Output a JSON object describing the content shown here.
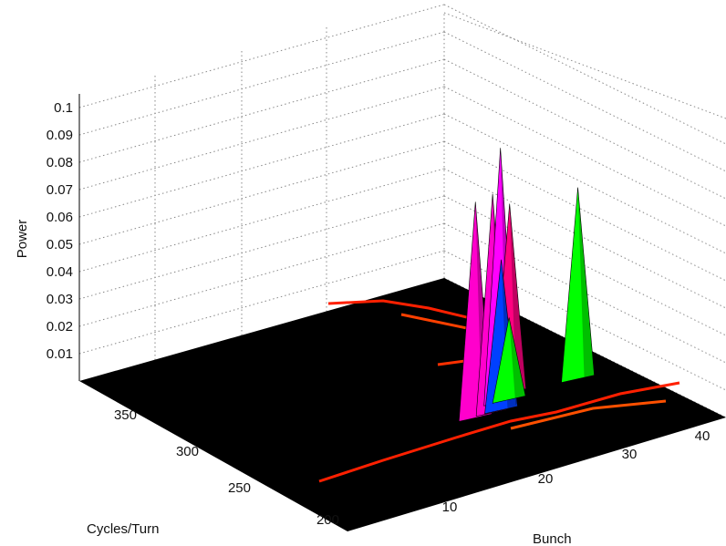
{
  "chart_data": {
    "type": "surface",
    "title": "",
    "xlabel": "Bunch",
    "ylabel": "Cycles/Turn",
    "zlabel": "Power",
    "x_ticks": [
      "10",
      "20",
      "30",
      "40"
    ],
    "y_ticks": [
      "200",
      "250",
      "300",
      "350"
    ],
    "z_ticks": [
      "0.01",
      "0.02",
      "0.03",
      "0.04",
      "0.05",
      "0.06",
      "0.07",
      "0.08",
      "0.09",
      "0.1"
    ],
    "zlim": [
      0,
      0.1
    ],
    "grid": true,
    "background": "#000000",
    "colormap": [
      "#ff0000",
      "#ff8000",
      "#ffff00",
      "#80ff00",
      "#00ff00",
      "#00ffff",
      "#0060ff",
      "#0000ff",
      "#8000ff",
      "#ff00ff",
      "#ff0080"
    ],
    "peaks": [
      {
        "bunch": 27,
        "cycles_per_turn": 255,
        "power": 0.079,
        "color": "#ff00cc"
      },
      {
        "bunch": 29,
        "cycles_per_turn": 255,
        "power": 0.08,
        "color": "#ff00cc"
      },
      {
        "bunch": 31,
        "cycles_per_turn": 262,
        "power": 0.093,
        "color": "#ff00ff"
      },
      {
        "bunch": 33,
        "cycles_per_turn": 268,
        "power": 0.069,
        "color": "#ff0080"
      },
      {
        "bunch": 30,
        "cycles_per_turn": 255,
        "power": 0.055,
        "color": "#0040ff"
      },
      {
        "bunch": 32,
        "cycles_per_turn": 262,
        "power": 0.03,
        "color": "#00ff00"
      },
      {
        "bunch": 40,
        "cycles_per_turn": 262,
        "power": 0.07,
        "color": "#00ff00"
      }
    ]
  }
}
